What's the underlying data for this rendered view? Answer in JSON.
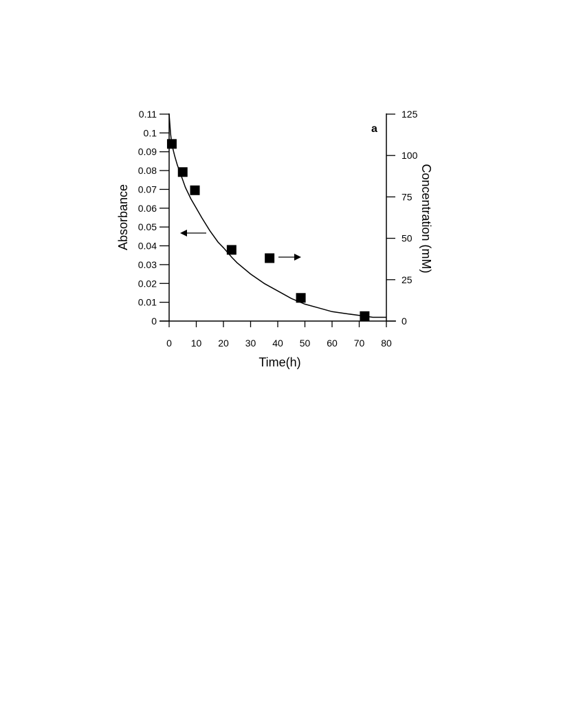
{
  "chart_data": {
    "type": "line",
    "panel_label": "a",
    "xlabel": "Time(h)",
    "ylabel_left": "Absorbance",
    "ylabel_right": "Concentration (mM)",
    "xlim": [
      0,
      80
    ],
    "ylim_left": [
      0,
      0.11
    ],
    "ylim_right": [
      0,
      125
    ],
    "x_ticks": [
      0,
      10,
      20,
      30,
      40,
      50,
      60,
      70,
      80
    ],
    "y_left_ticks": [
      0,
      0.01,
      0.02,
      0.03,
      0.04,
      0.05,
      0.06,
      0.07,
      0.08,
      0.09,
      0.1,
      0.11
    ],
    "y_left_tick_labels": [
      "0",
      "0.01",
      "0.02",
      "0.03",
      "0.04",
      "0.05",
      "0.06",
      "0.07",
      "0.08",
      "0.09",
      "0.1",
      "0.11"
    ],
    "y_right_ticks": [
      0,
      25,
      50,
      75,
      100,
      125
    ],
    "y_right_tick_labels": [
      "0",
      "25",
      "50",
      "75",
      "100",
      "125"
    ],
    "series": [
      {
        "axis": "left",
        "style": "line",
        "color": "#000000",
        "x": [
          0,
          0.5,
          1,
          2,
          3,
          4,
          5,
          6,
          8,
          10,
          12,
          15,
          18,
          20,
          23,
          25,
          30,
          35,
          40,
          45,
          50,
          55,
          60,
          65,
          70,
          75,
          80
        ],
        "y": [
          0.11,
          0.1,
          0.094,
          0.088,
          0.083,
          0.079,
          0.075,
          0.071,
          0.065,
          0.06,
          0.055,
          0.048,
          0.042,
          0.039,
          0.034,
          0.031,
          0.025,
          0.02,
          0.016,
          0.012,
          0.009,
          0.007,
          0.005,
          0.004,
          0.003,
          0.002,
          0.002
        ]
      },
      {
        "axis": "right",
        "style": "square-markers",
        "color": "#000000",
        "x": [
          1,
          5,
          9.5,
          23,
          37,
          48.5,
          72
        ],
        "y": [
          107,
          90,
          79,
          43,
          38,
          14,
          3
        ]
      }
    ],
    "annotations": [
      {
        "type": "arrow",
        "direction": "left",
        "target_axis": "left"
      },
      {
        "type": "arrow",
        "direction": "right",
        "target_axis": "right"
      }
    ],
    "grid": false
  }
}
